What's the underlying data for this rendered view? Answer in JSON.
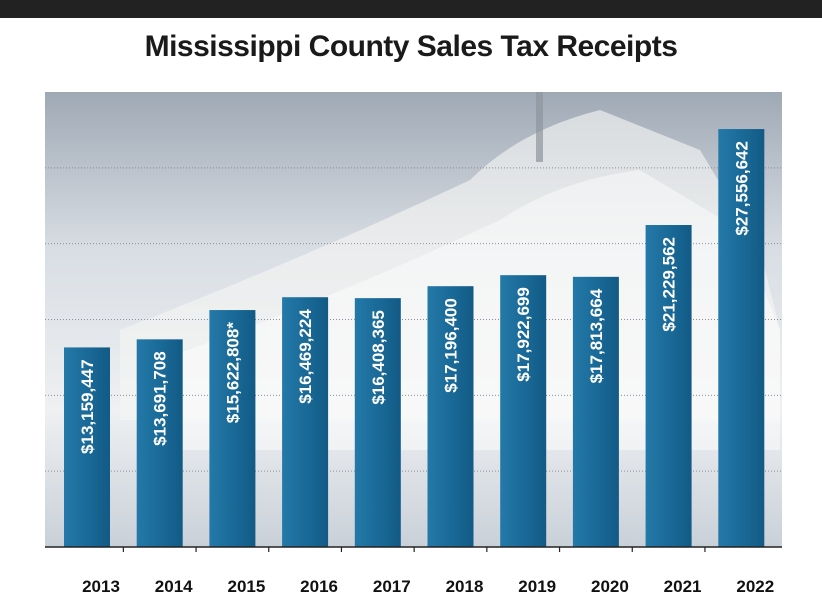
{
  "chart_data": {
    "type": "bar",
    "title": "Mississippi County Sales Tax Receipts",
    "categories": [
      "2013",
      "2014",
      "2015",
      "2016",
      "2017",
      "2018",
      "2019",
      "2020",
      "2021",
      "2022"
    ],
    "values": [
      13159447,
      13691708,
      15622808,
      16469224,
      16408365,
      17196400,
      17922699,
      17813664,
      21229562,
      27556642
    ],
    "data_labels": [
      "$13,159,447",
      "$13,691,708",
      "$15,622,808*",
      "$16,469,224",
      "$16,408,365",
      "$17,196,400",
      "$17,922,699",
      "$17,813,664",
      "$21,229,562",
      "$27,556,642"
    ],
    "xlabel": "",
    "ylabel": "",
    "ylim": [
      0,
      30000000
    ],
    "grid": true,
    "legend": "none",
    "colors": {
      "bar": "#1f6e9c",
      "bar_dark": "#0f5580",
      "background_top": "#a4adb8",
      "background_bottom": "#e4e8ec",
      "grid": "#8a9099",
      "axis": "#222222"
    }
  }
}
